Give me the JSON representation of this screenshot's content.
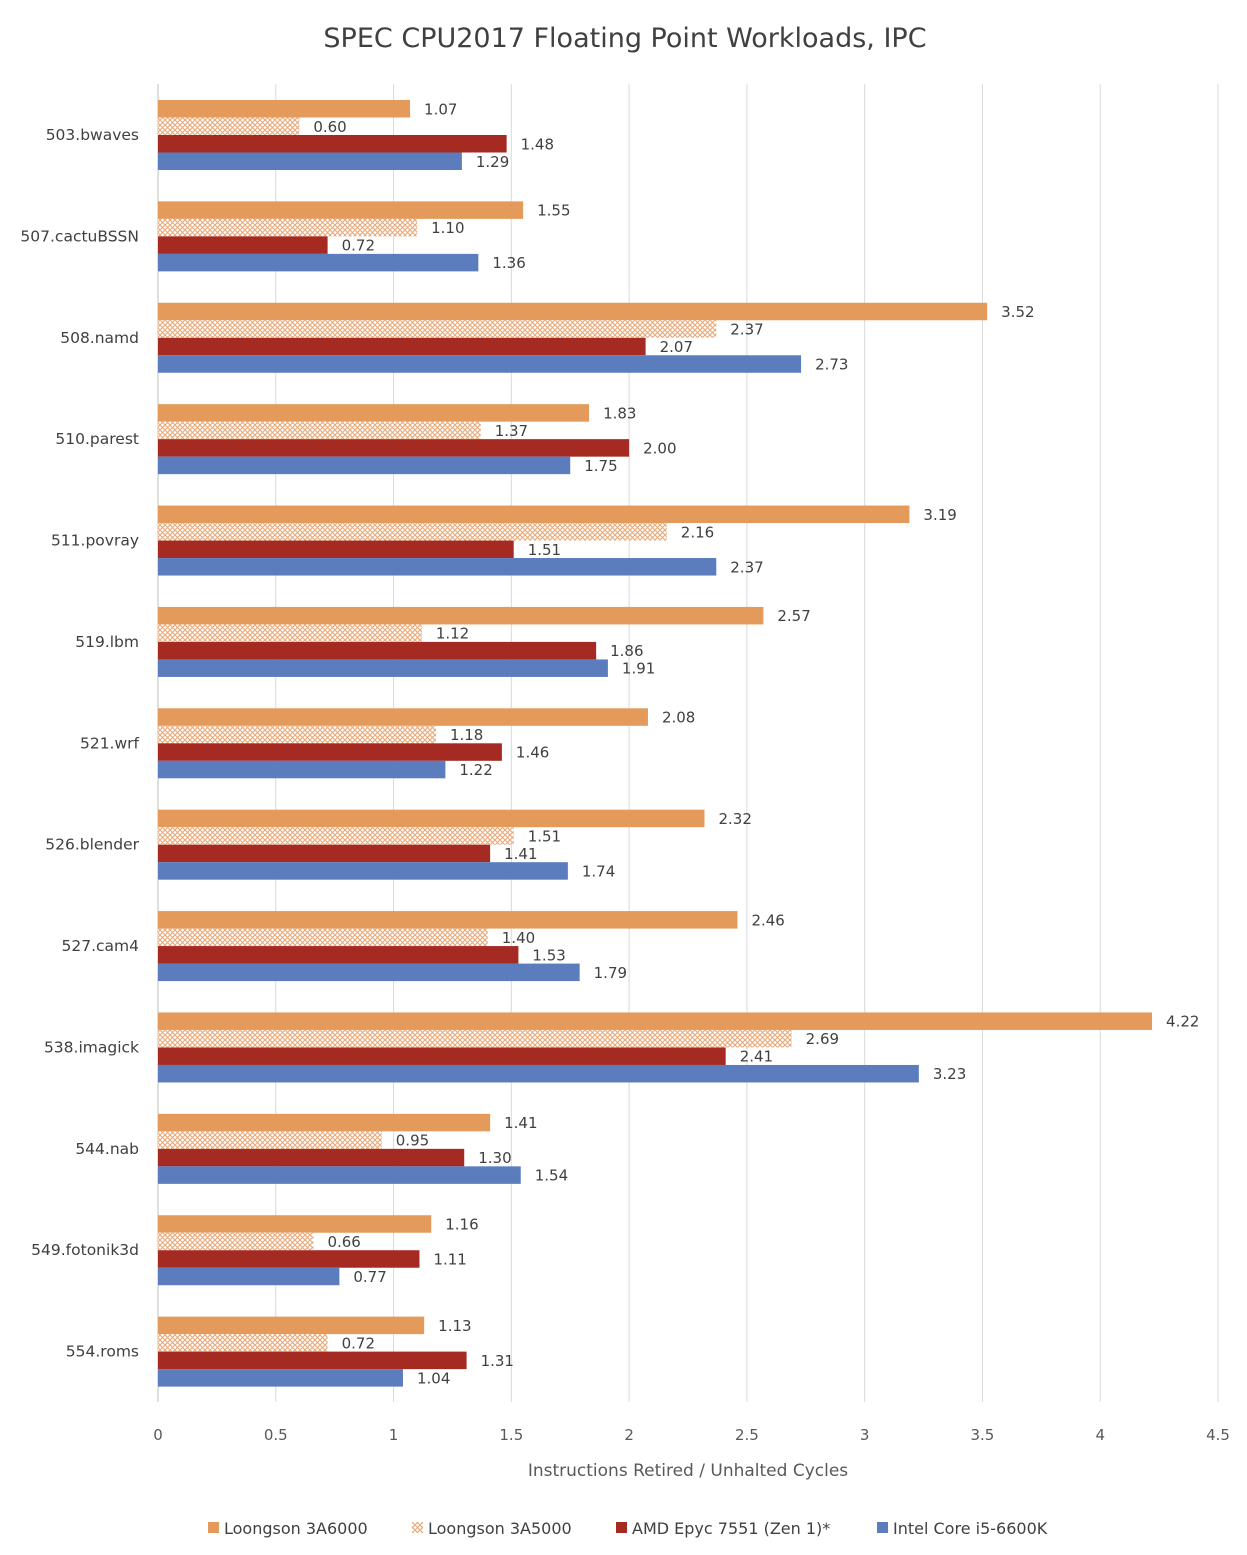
{
  "chart_data": {
    "type": "bar",
    "orientation": "horizontal",
    "title": "SPEC CPU2017 Floating Point Workloads, IPC",
    "xlabel": "Instructions Retired / Unhalted Cycles",
    "ylabel": "",
    "xlim": [
      0,
      4.5
    ],
    "xticks": [
      "0",
      "0.5",
      "1",
      "1.5",
      "2",
      "2.5",
      "3",
      "3.5",
      "4",
      "4.5"
    ],
    "grid": "vertical",
    "legend_position": "bottom",
    "categories": [
      "503.bwaves",
      "507.cactuBSSN",
      "508.namd",
      "510.parest",
      "511.povray",
      "519.lbm",
      "521.wrf",
      "526.blender",
      "527.cam4",
      "538.imagick",
      "544.nab",
      "549.fotonik3d",
      "554.roms"
    ],
    "series": [
      {
        "name": "Loongson 3A6000",
        "color": "#e39a5a",
        "pattern": "solid",
        "values": [
          1.07,
          1.55,
          3.52,
          1.83,
          3.19,
          2.57,
          2.08,
          2.32,
          2.46,
          4.22,
          1.41,
          1.16,
          1.13
        ],
        "labels": [
          "1.07",
          "1.55",
          "3.52",
          "1.83",
          "3.19",
          "2.57",
          "2.08",
          "2.32",
          "2.46",
          "4.22",
          "1.41",
          "1.16",
          "1.13"
        ]
      },
      {
        "name": "Loongson 3A5000",
        "color": "#e8a878",
        "pattern": "crosshatch",
        "values": [
          0.6,
          1.1,
          2.37,
          1.37,
          2.16,
          1.12,
          1.18,
          1.51,
          1.4,
          2.69,
          0.95,
          0.66,
          0.72
        ],
        "labels": [
          "0.60",
          "1.10",
          "2.37",
          "1.37",
          "2.16",
          "1.12",
          "1.18",
          "1.51",
          "1.40",
          "2.69",
          "0.95",
          "0.66",
          "0.72"
        ]
      },
      {
        "name": "AMD Epyc 7551 (Zen 1)*",
        "color": "#a52a22",
        "pattern": "solid",
        "values": [
          1.48,
          0.72,
          2.07,
          2.0,
          1.51,
          1.86,
          1.46,
          1.41,
          1.53,
          2.41,
          1.3,
          1.11,
          1.31
        ],
        "labels": [
          "1.48",
          "0.72",
          "2.07",
          "2.00",
          "1.51",
          "1.86",
          "1.46",
          "1.41",
          "1.53",
          "2.41",
          "1.30",
          "1.11",
          "1.31"
        ]
      },
      {
        "name": "Intel Core i5-6600K",
        "color": "#5b7dbe",
        "pattern": "solid",
        "values": [
          1.29,
          1.36,
          2.73,
          1.75,
          2.37,
          1.91,
          1.22,
          1.74,
          1.79,
          3.23,
          1.54,
          0.77,
          1.04
        ],
        "labels": [
          "1.29",
          "1.36",
          "2.73",
          "1.75",
          "2.37",
          "1.91",
          "1.22",
          "1.74",
          "1.79",
          "3.23",
          "1.54",
          "0.77",
          "1.04"
        ]
      }
    ]
  }
}
